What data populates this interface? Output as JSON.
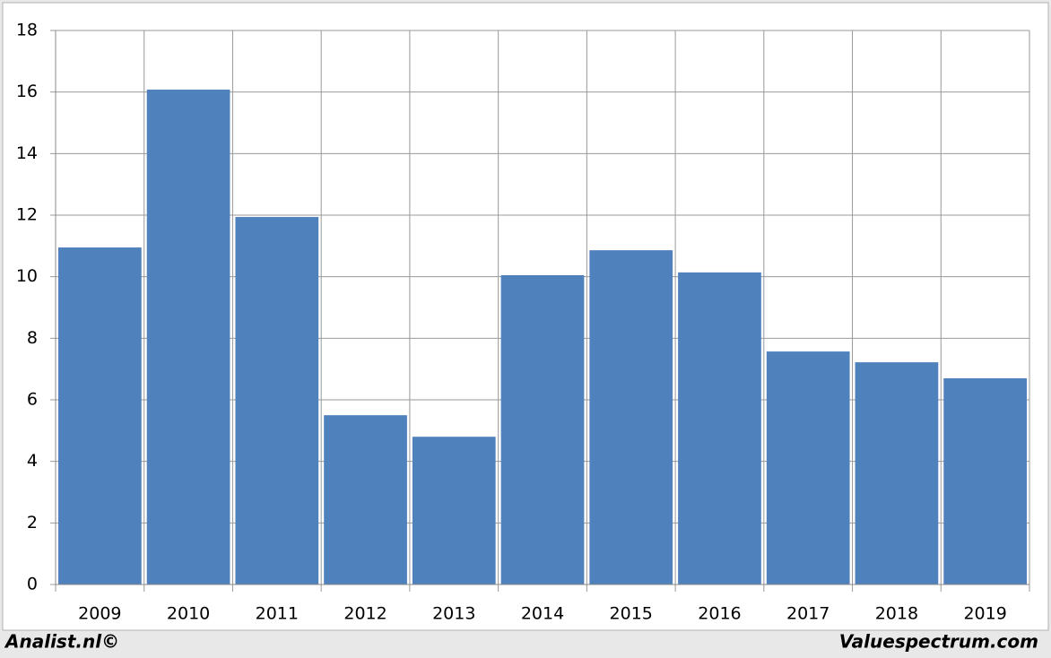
{
  "chart_data": {
    "type": "bar",
    "categories": [
      "2009",
      "2010",
      "2011",
      "2012",
      "2013",
      "2014",
      "2015",
      "2016",
      "2017",
      "2018",
      "2019"
    ],
    "values": [
      10.95,
      16.08,
      11.94,
      5.5,
      4.8,
      10.05,
      10.86,
      10.14,
      7.57,
      7.22,
      6.7
    ],
    "color": "#4f81bd",
    "ylim": [
      0,
      18
    ],
    "yticks": [
      0,
      2,
      4,
      6,
      8,
      10,
      12,
      14,
      16,
      18
    ],
    "grid": true
  },
  "footer": {
    "left": "Analist.nl©",
    "right": "Valuespectrum.com"
  }
}
